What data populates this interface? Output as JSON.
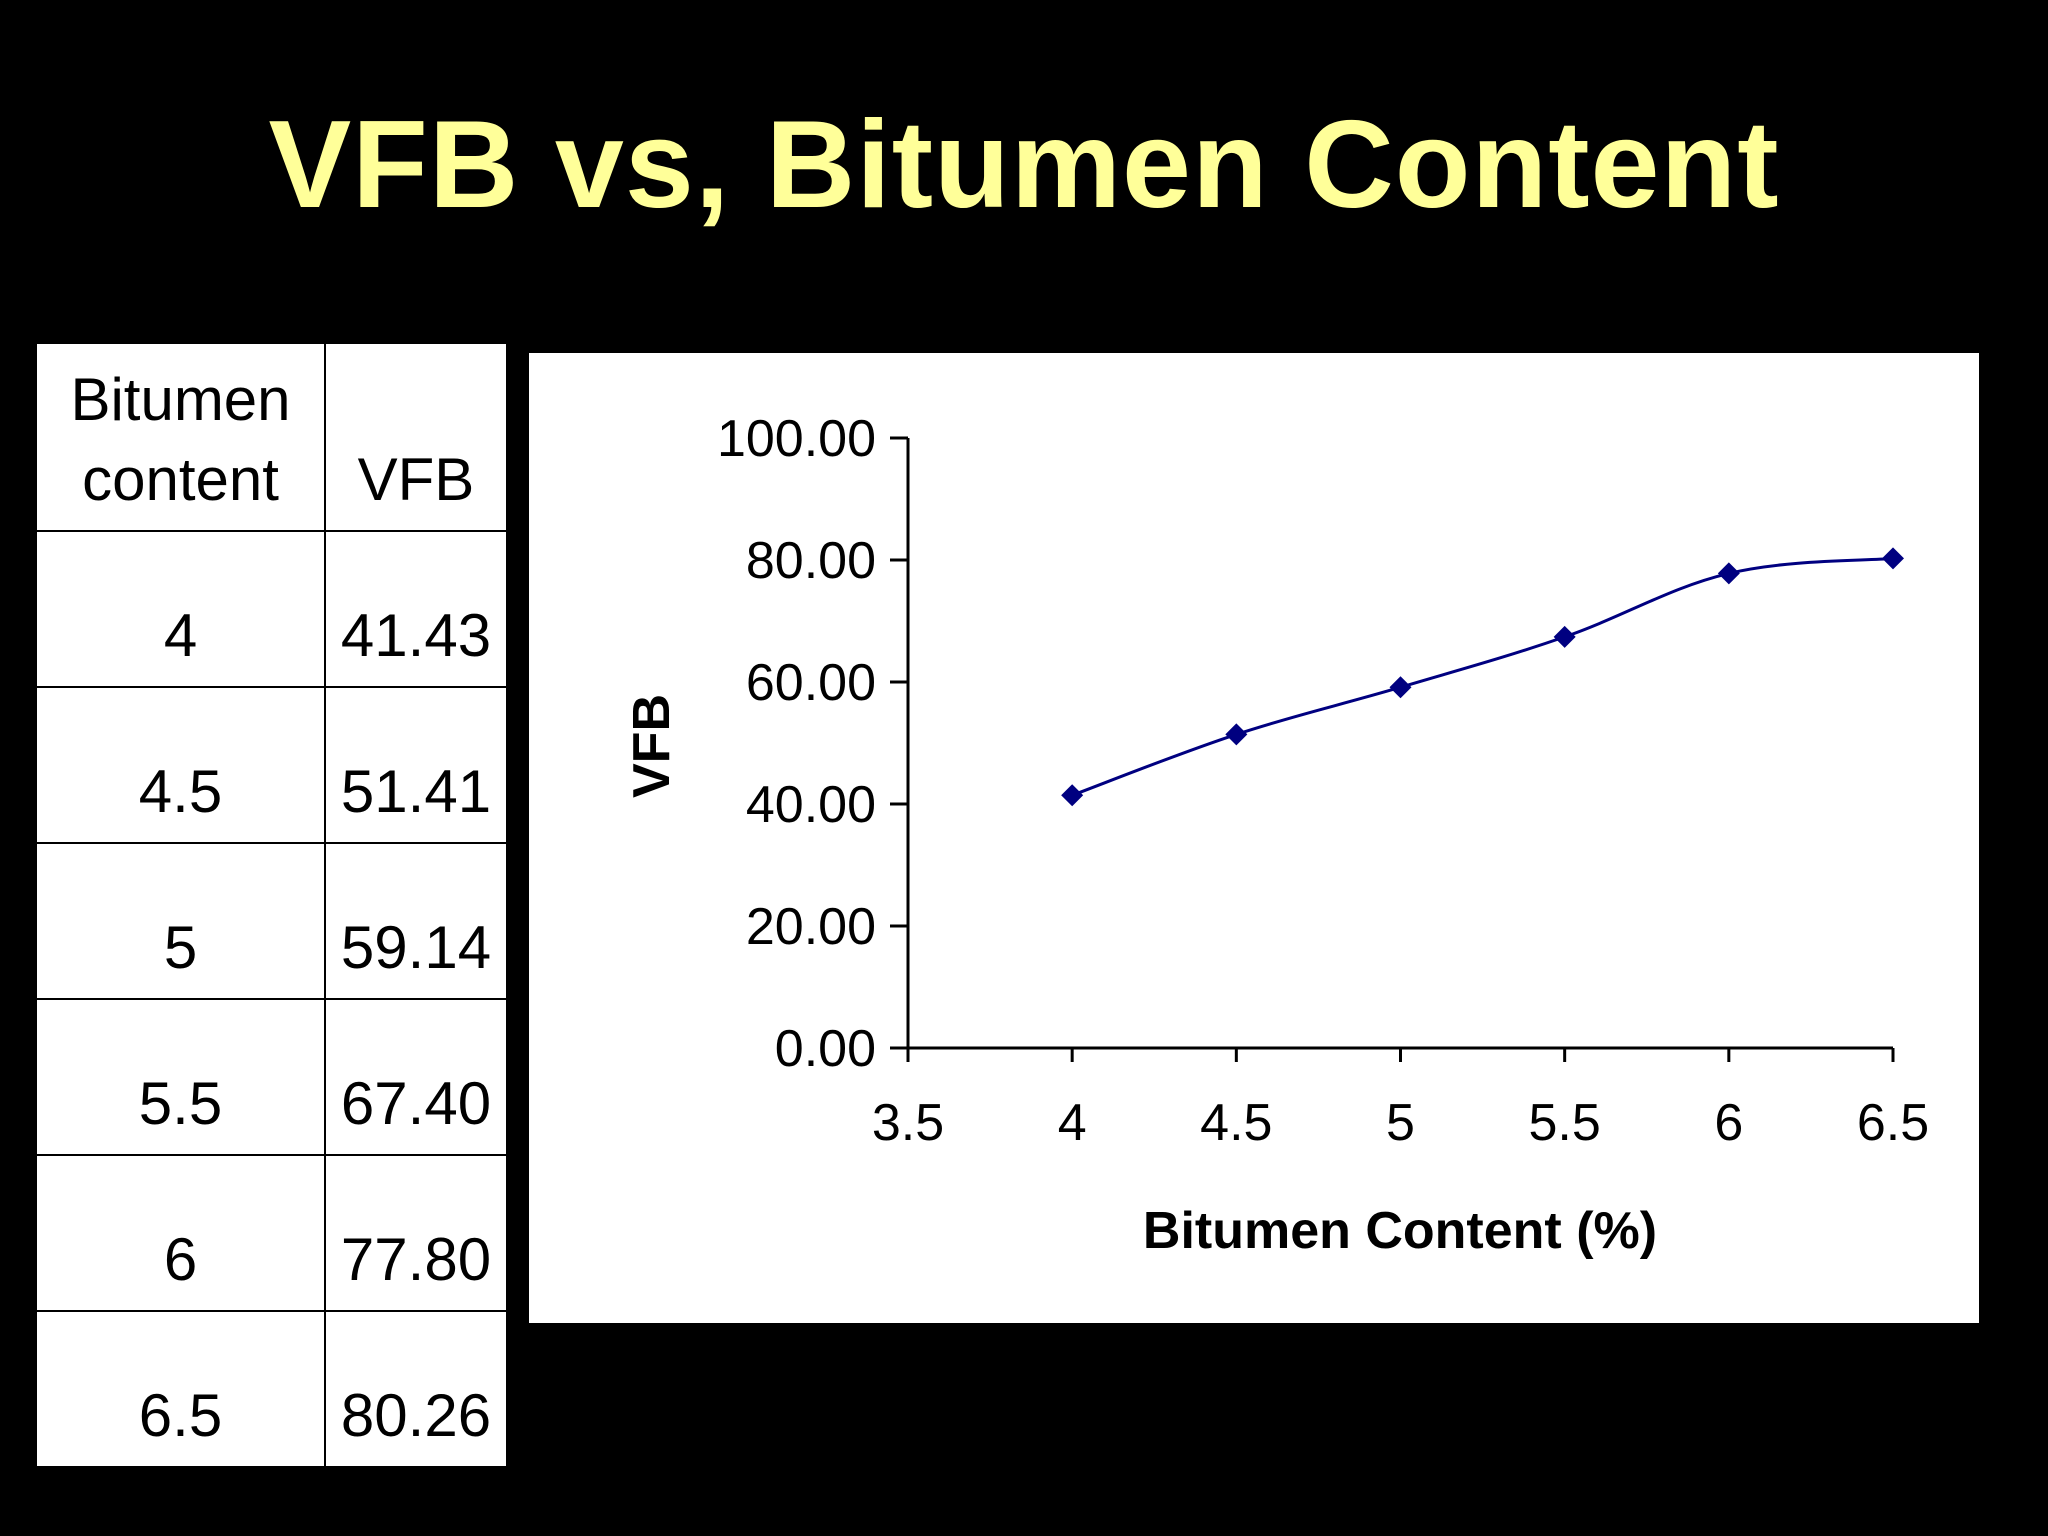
{
  "slide": {
    "title": "VFB vs, Bitumen Content"
  },
  "table": {
    "headers": [
      "Bitumen content",
      "VFB"
    ],
    "rows": [
      [
        "4",
        "41.43"
      ],
      [
        "4.5",
        "51.41"
      ],
      [
        "5",
        "59.14"
      ],
      [
        "5.5",
        "67.40"
      ],
      [
        "6",
        "77.80"
      ],
      [
        "6.5",
        "80.26"
      ]
    ]
  },
  "colors": {
    "title": "#FFFF99",
    "background": "#000000",
    "series": "#000080"
  },
  "chart_data": {
    "type": "line",
    "title": "",
    "xlabel": "Bitumen Content (%)",
    "ylabel": "VFB",
    "xlim": [
      3.5,
      6.5
    ],
    "ylim": [
      0,
      100
    ],
    "x_ticks": [
      "3.5",
      "4",
      "4.5",
      "5",
      "5.5",
      "6",
      "6.5"
    ],
    "y_ticks": [
      "0.00",
      "20.00",
      "40.00",
      "60.00",
      "80.00",
      "100.00"
    ],
    "grid": false,
    "legend": "none",
    "marker": "diamond",
    "smoothed": true,
    "series": [
      {
        "x": [
          4,
          4.5,
          5,
          5.5,
          6,
          6.5
        ],
        "values": [
          41.43,
          51.41,
          59.14,
          67.4,
          77.8,
          80.26
        ]
      }
    ]
  }
}
